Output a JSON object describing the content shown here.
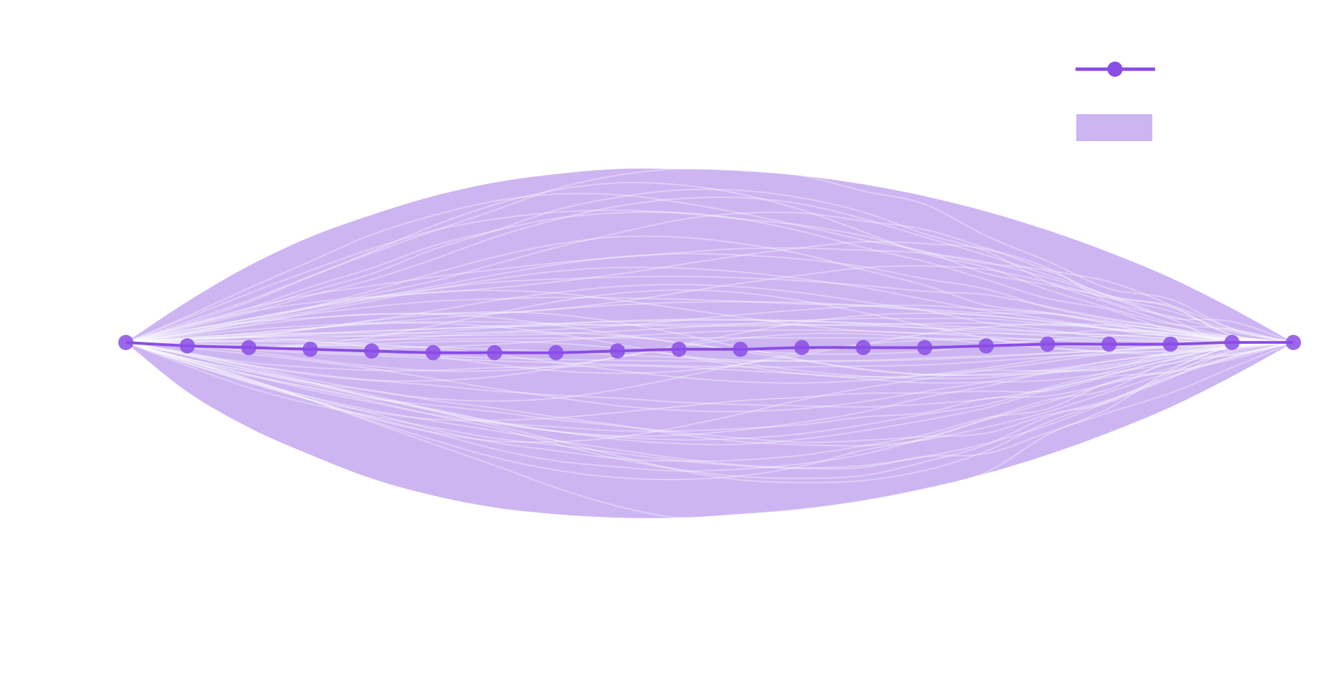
{
  "chart_data": {
    "type": "line",
    "title": "",
    "xlabel": "",
    "ylabel": "",
    "grid": false,
    "legend_position": "top-right",
    "colors": {
      "line": "#8a4de6",
      "band": "#cdb5f2",
      "traces": "#ffffff"
    },
    "x": [
      0,
      1,
      2,
      3,
      4,
      5,
      6,
      7,
      8,
      9,
      10,
      11,
      12,
      13,
      14,
      15,
      16,
      17,
      18,
      19
    ],
    "xlim": [
      0,
      19
    ],
    "ylim": [
      -1.2,
      1.2
    ],
    "series": [
      {
        "kind": "line",
        "values": [
          0.0,
          -0.02,
          -0.03,
          -0.04,
          -0.05,
          -0.06,
          -0.06,
          -0.06,
          -0.05,
          -0.04,
          -0.04,
          -0.03,
          -0.03,
          -0.03,
          -0.02,
          -0.01,
          -0.01,
          -0.01,
          0.0,
          0.0
        ]
      },
      {
        "kind": "band",
        "lower": [
          0.0,
          -0.29,
          -0.5,
          -0.66,
          -0.8,
          -0.9,
          -0.97,
          -1.01,
          -1.03,
          -1.03,
          -1.01,
          -0.98,
          -0.93,
          -0.86,
          -0.77,
          -0.66,
          -0.53,
          -0.38,
          -0.2,
          0.0
        ],
        "upper": [
          0.0,
          0.24,
          0.45,
          0.62,
          0.75,
          0.86,
          0.94,
          0.99,
          1.02,
          1.02,
          1.01,
          0.98,
          0.93,
          0.86,
          0.77,
          0.66,
          0.53,
          0.38,
          0.2,
          0.0
        ]
      }
    ],
    "legend": [
      {
        "kind": "line-marker",
        "label": ""
      },
      {
        "kind": "patch",
        "label": ""
      }
    ]
  }
}
